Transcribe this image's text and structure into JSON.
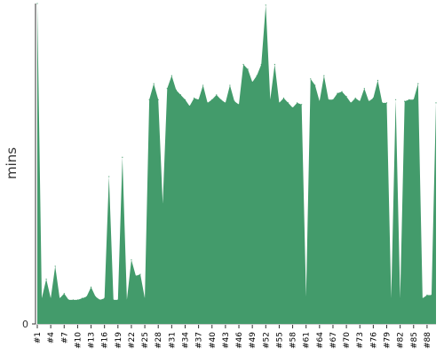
{
  "chart_data": {
    "type": "area",
    "title": "",
    "xlabel": "",
    "ylabel": "mins",
    "y_tick_labels": [
      "0"
    ],
    "ylim": [
      0,
      1000
    ],
    "grid": false,
    "legend": "none",
    "fill_color": "#439b6b",
    "axis_color": "#333333",
    "x_tick_every": 3,
    "categories": [
      "#1",
      "#2",
      "#3",
      "#4",
      "#5",
      "#6",
      "#7",
      "#8",
      "#9",
      "#10",
      "#11",
      "#12",
      "#13",
      "#14",
      "#15",
      "#16",
      "#17",
      "#18",
      "#19",
      "#20",
      "#21",
      "#22",
      "#23",
      "#24",
      "#25",
      "#26",
      "#27",
      "#28",
      "#29",
      "#30",
      "#31",
      "#32",
      "#33",
      "#34",
      "#35",
      "#36",
      "#37",
      "#38",
      "#39",
      "#40",
      "#41",
      "#42",
      "#43",
      "#44",
      "#45",
      "#46",
      "#47",
      "#48",
      "#49",
      "#50",
      "#51",
      "#52",
      "#53",
      "#54",
      "#55",
      "#56",
      "#57",
      "#58",
      "#59",
      "#60",
      "#61",
      "#62",
      "#63",
      "#64",
      "#65",
      "#66",
      "#67",
      "#68",
      "#69",
      "#70",
      "#71",
      "#72",
      "#73",
      "#74",
      "#75",
      "#76",
      "#77",
      "#78",
      "#79",
      "#80",
      "#81",
      "#82",
      "#83",
      "#84",
      "#85",
      "#86",
      "#87",
      "#88",
      "#89",
      "#90"
    ],
    "series": [
      {
        "values": [
          1000,
          80,
          140,
          80,
          180,
          80,
          95,
          75,
          75,
          75,
          80,
          85,
          115,
          85,
          75,
          80,
          460,
          75,
          75,
          520,
          75,
          200,
          150,
          155,
          80,
          700,
          750,
          700,
          375,
          735,
          775,
          730,
          715,
          700,
          680,
          705,
          700,
          745,
          690,
          700,
          715,
          700,
          690,
          745,
          695,
          685,
          810,
          795,
          755,
          775,
          810,
          995,
          700,
          810,
          690,
          705,
          690,
          675,
          690,
          685,
          85,
          765,
          745,
          695,
          775,
          700,
          700,
          720,
          725,
          710,
          690,
          705,
          695,
          735,
          695,
          705,
          760,
          690,
          690,
          80,
          700,
          80,
          695,
          700,
          700,
          750,
          80,
          90,
          90,
          690
        ]
      }
    ]
  }
}
